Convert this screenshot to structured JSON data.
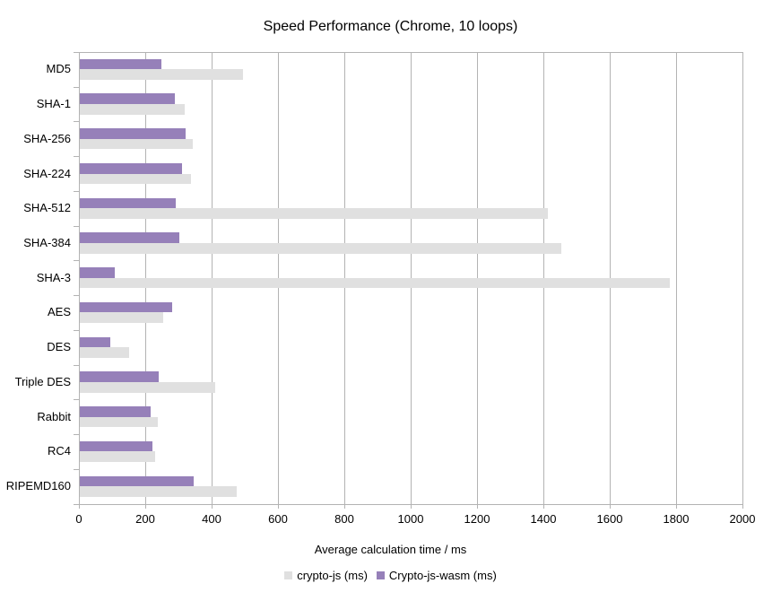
{
  "chart_data": {
    "type": "bar",
    "orientation": "horizontal",
    "title": "Speed Performance (Chrome, 10 loops)",
    "xlabel": "Average calculation time / ms",
    "ylabel": "",
    "categories": [
      "MD5",
      "SHA-1",
      "SHA-256",
      "SHA-224",
      "SHA-512",
      "SHA-384",
      "SHA-3",
      "AES",
      "DES",
      "Triple DES",
      "Rabbit",
      "RC4",
      "RIPEMD160"
    ],
    "series": [
      {
        "name": "crypto-js (ms)",
        "color": "#e0e0e0",
        "values": [
          492,
          316,
          341,
          336,
          1412,
          1451,
          1778,
          250,
          149,
          408,
          235,
          228,
          472
        ]
      },
      {
        "name": "Crypto-js-wasm (ms)",
        "color": "#9680b9",
        "values": [
          246,
          286,
          318,
          309,
          288,
          299,
          105,
          278,
          93,
          238,
          214,
          218,
          344
        ]
      }
    ],
    "xlim": [
      0,
      2000
    ],
    "xticks": [
      0,
      200,
      400,
      600,
      800,
      1000,
      1200,
      1400,
      1600,
      1800,
      2000
    ],
    "grid": "vertical",
    "legend_position": "bottom",
    "colors": {
      "gridline": "#b3b3b3",
      "axis": "#b3b3b3",
      "text": "#000000",
      "background": "#ffffff"
    }
  }
}
